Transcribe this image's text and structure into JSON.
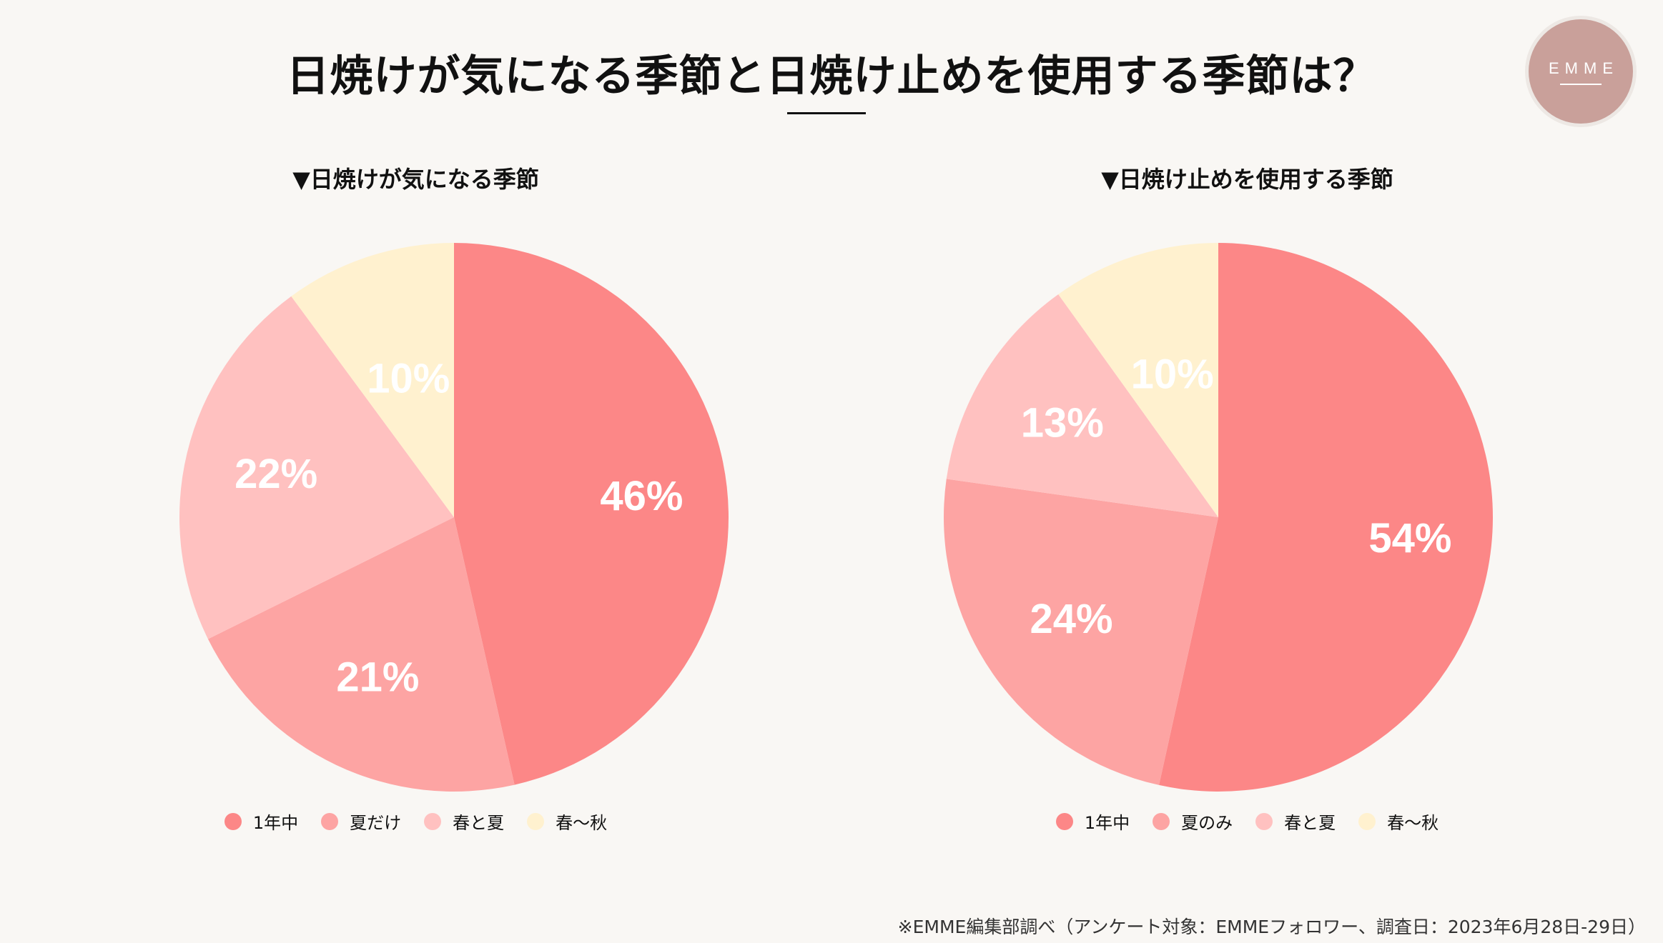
{
  "header": {
    "title": "日焼けが気になる季節と日焼け止めを使用する季節は？",
    "logo": "EMME"
  },
  "colors": {
    "year_round": "#fc8787",
    "summer": "#fda4a3",
    "spring_summer": "#ffc1c0",
    "spring_autumn": "#fff1cf"
  },
  "chart_data": [
    {
      "type": "pie",
      "title": "▼日焼けが気になる季節",
      "categories": [
        "1年中",
        "夏だけ",
        "春と夏",
        "春〜秋"
      ],
      "values": [
        46,
        21,
        22,
        10
      ],
      "labels": [
        "46%",
        "21%",
        "22%",
        "10%"
      ],
      "colors": [
        "#fc8787",
        "#fda4a3",
        "#ffc1c0",
        "#fff1cf"
      ],
      "legend": "bottom"
    },
    {
      "type": "pie",
      "title": "▼日焼け止めを使用する季節",
      "categories": [
        "1年中",
        "夏のみ",
        "春と夏",
        "春〜秋"
      ],
      "values": [
        54,
        24,
        13,
        10
      ],
      "labels": [
        "54%",
        "24%",
        "13%",
        "10%"
      ],
      "colors": [
        "#fc8787",
        "#fda4a3",
        "#ffc1c0",
        "#fff1cf"
      ],
      "legend": "bottom"
    }
  ],
  "footnote": "※EMME編集部調べ（アンケート対象：EMMEフォロワー、調査日：2023年6月28日-29日）"
}
